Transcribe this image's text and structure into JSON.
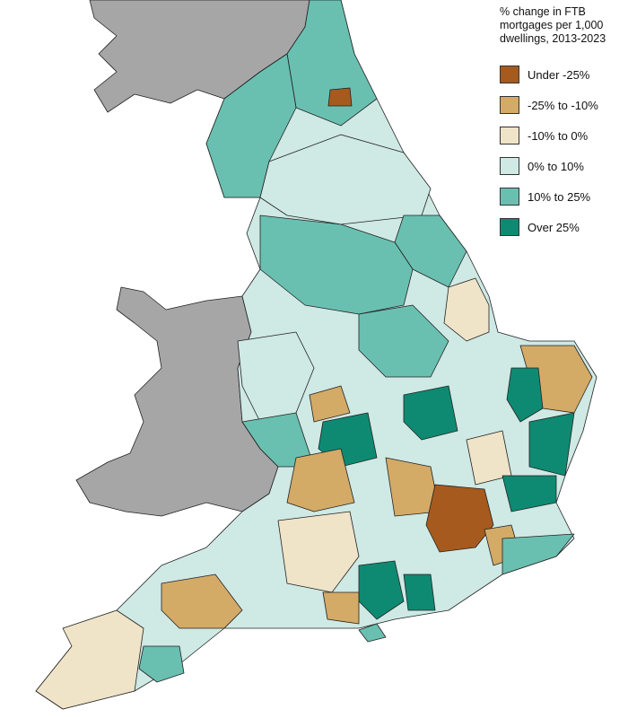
{
  "legend": {
    "title": "% change in FTB mortgages per 1,000 dwellings, 2013-2023",
    "items": [
      {
        "label": "Under -25%",
        "color": "#a65a1e"
      },
      {
        "label": "-25% to -10%",
        "color": "#d4aa67"
      },
      {
        "label": "-10% to 0%",
        "color": "#efe3c8"
      },
      {
        "label": "0% to 10%",
        "color": "#cfe9e5"
      },
      {
        "label": "10% to 25%",
        "color": "#69c0b0"
      },
      {
        "label": "Over 25%",
        "color": "#0e8a72"
      }
    ]
  }
}
